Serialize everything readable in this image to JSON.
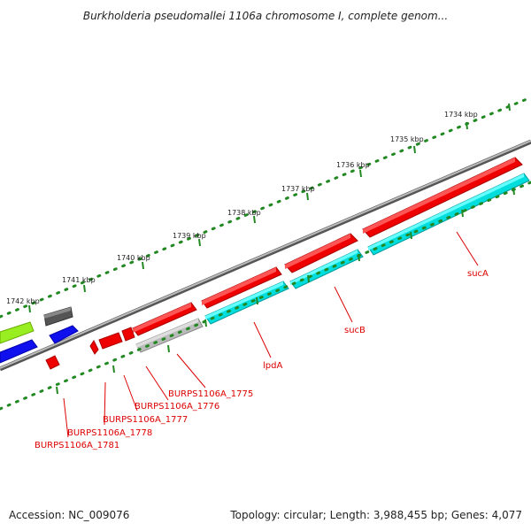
{
  "title": "Burkholderia pseudomallei 1106a chromosome I, complete genom...",
  "accession_text": "Accession: NC_009076",
  "summary_text": "Topology: circular; Length: 3,988,455 bp; Genes: 4,077",
  "colors": {
    "forward_gene": "#ee0000",
    "reverse_gene": "#00dddd",
    "gray_gene": "#bbbbbb",
    "dark_gene": "#555555",
    "blue_gene": "#1010ee",
    "green_gene": "#99ee22",
    "backbone": "#888888",
    "ruler": "#228822",
    "label": "#dd0000"
  },
  "ruler_labels": [
    "1734 kbp",
    "1735 kbp",
    "1736 kbp",
    "1737 kbp",
    "1738 kbp",
    "1739 kbp",
    "1740 kbp",
    "1741 kbp",
    "1742 kbp"
  ],
  "gene_labels": [
    "sucA",
    "sucB",
    "lpdA",
    "BURPS1106A_1775",
    "BURPS1106A_1776",
    "BURPS1106A_1777",
    "BURPS1106A_1778",
    "BURPS1106A_1781"
  ]
}
